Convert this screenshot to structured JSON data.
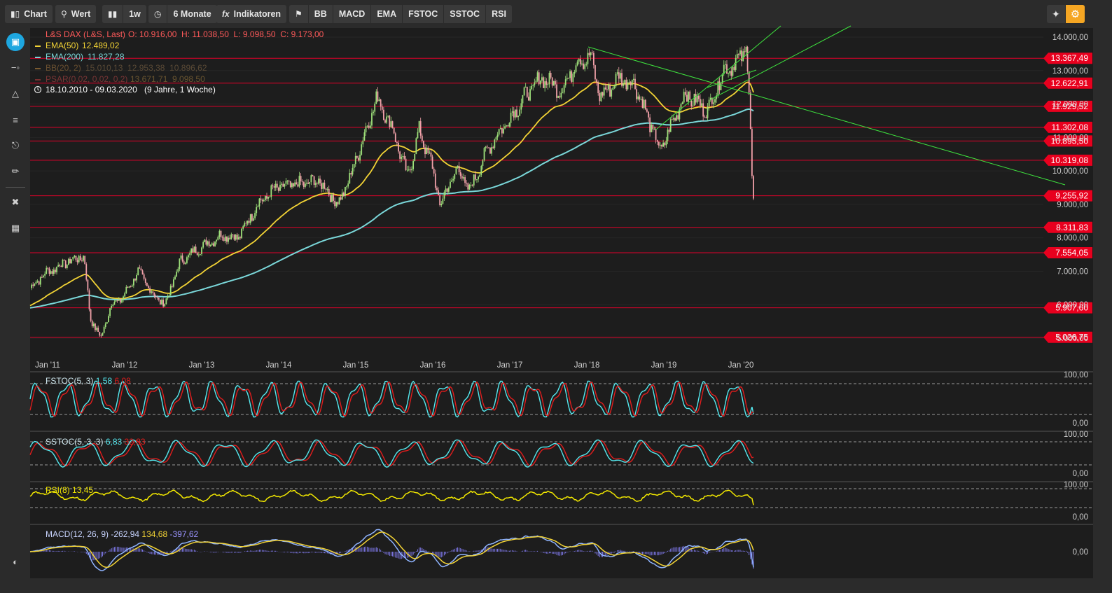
{
  "toolbar": {
    "chart_label": "Chart",
    "wert_label": "Wert",
    "interval_label": "1w",
    "range_label": "6 Monate",
    "indicators_label": "Indikatoren",
    "quick_indicators": [
      "BB",
      "MACD",
      "EMA",
      "FSTOC",
      "SSTOC",
      "RSI"
    ]
  },
  "sidebar": {
    "icons": [
      "chart-type-icon",
      "line-tool-icon",
      "triangle-tool-icon",
      "fibonacci-tool-icon",
      "text-tool-icon",
      "draw-tool-icon",
      "tools-icon",
      "calculator-icon"
    ],
    "bottom_icon": "contrast-icon"
  },
  "legend": {
    "title": "L&S DAX (L&S, Last)",
    "ohlc": "O: 10.916,00  H: 11.038,50  L: 9.098,50  C: 9.173,00",
    "ema50_label": "EMA(50)",
    "ema50_value": "12.489,02",
    "ema200_label": "EMA(200)",
    "ema200_value": "11.827,28",
    "bb_label": "BB(20, 2)",
    "bb_values": "15.010,13  12.953,38  10.896,62",
    "psar_label": "PSAR(0,02, 0,02, 0,2)",
    "psar_values": "13.671,71  9.098,50",
    "date_range": "18.10.2010 - 09.03.2020",
    "date_range_note": "(9 Jahre, 1 Woche)"
  },
  "price_axis": [
    "14.000,00",
    "13.000,00",
    "12.000,00",
    "11.000,00",
    "10.000,00",
    "9.000,00",
    "8.000,00",
    "7.000,00",
    "6.000,00",
    "5.000,00"
  ],
  "levels": [
    "13.367,49",
    "12.622,91",
    "11.929,52",
    "11.302,08",
    "10.895,50",
    "10.319,08",
    "9.255,92",
    "8.311,83",
    "7.554,05",
    "5.907,60",
    "5.026,75"
  ],
  "time_axis": [
    "Jan '11",
    "Jan '12",
    "Jan '13",
    "Jan '14",
    "Jan '15",
    "Jan '16",
    "Jan '17",
    "Jan '18",
    "Jan '19",
    "Jan '20"
  ],
  "panels": {
    "fstoc": {
      "label": "FSTOC(5, 3)",
      "k": "1,58",
      "d": "6,08",
      "top": "100,00",
      "bottom": "0,00"
    },
    "sstoc": {
      "label": "SSTOC(5, 3, 3)",
      "k": "6,83",
      "d": "32,83",
      "top": "100,00",
      "bottom": "0,00"
    },
    "rsi": {
      "label": "RSI(8)",
      "value": "13,45",
      "top": "100,00",
      "bottom": "0,00"
    },
    "macd": {
      "label": "MACD(12, 26, 9)",
      "macd": "-262,94",
      "signal": "134,68",
      "hist": "-397,62",
      "zero": "0,00"
    }
  },
  "colors": {
    "background": "#1d1d1d",
    "level_line": "#e0002a",
    "level_label_bg": "#e8001e",
    "ema50": "#f2d335",
    "ema200": "#7ad7d9",
    "trend_lines": "#3ee23e",
    "candle_up": "#9ee07a",
    "candle_down": "#f0a0a8",
    "macd_hist": "#7e78e8",
    "stoch_k": "#55e8ee",
    "stoch_d": "#e11d1d",
    "rsi": "#f2e800",
    "accent": "#f5a623"
  }
}
